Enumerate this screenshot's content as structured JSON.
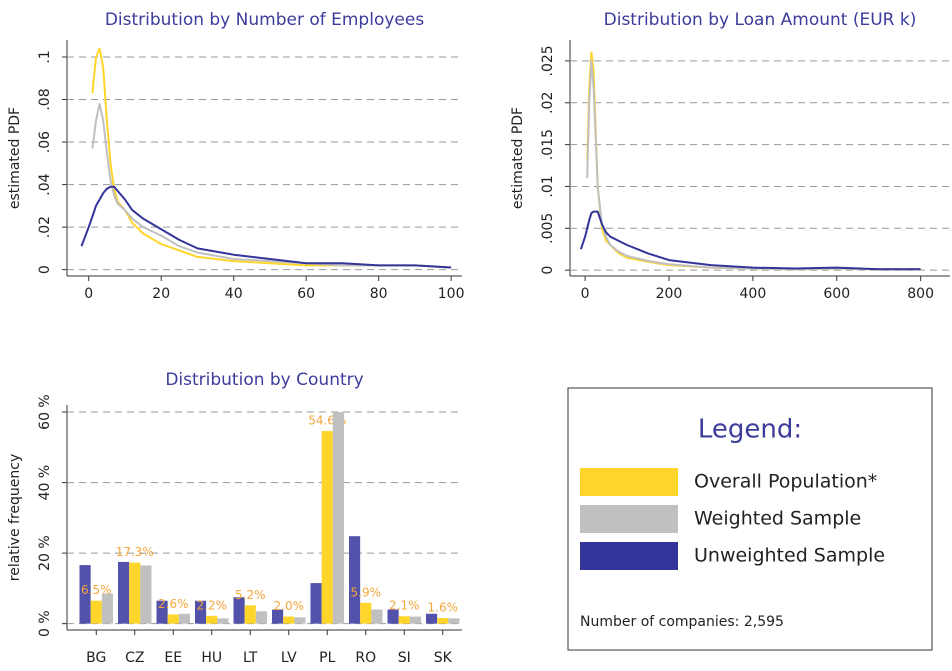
{
  "chart_data": [
    {
      "type": "line",
      "title": "Distribution by Number of Employees",
      "y_label": "estimated PDF",
      "x": [
        -2,
        0,
        1,
        2,
        3,
        4,
        5,
        6,
        7,
        8,
        10,
        12,
        15,
        20,
        25,
        30,
        40,
        50,
        60,
        70,
        80,
        90,
        100
      ],
      "series": [
        {
          "name": "Overall Population*",
          "color": "#fdd52b",
          "values": [
            null,
            null,
            0.083,
            0.1,
            0.104,
            0.095,
            0.07,
            0.05,
            0.038,
            0.032,
            0.028,
            0.022,
            0.017,
            0.012,
            0.009,
            0.006,
            0.004,
            0.003,
            0.002,
            0.002,
            0.002,
            0.002,
            0.001
          ]
        },
        {
          "name": "Weighted Sample",
          "color": "#c0c0c0",
          "values": [
            null,
            null,
            0.057,
            0.07,
            0.078,
            0.07,
            0.055,
            0.042,
            0.035,
            0.031,
            0.028,
            0.024,
            0.02,
            0.016,
            0.011,
            0.008,
            0.005,
            0.004,
            0.003,
            0.002,
            0.002,
            0.002,
            0.001
          ]
        },
        {
          "name": "Unweighted Sample",
          "color": "#34349a",
          "values": [
            0.011,
            0.02,
            0.025,
            0.03,
            0.033,
            0.036,
            0.038,
            0.039,
            0.039,
            0.037,
            0.033,
            0.028,
            0.024,
            0.019,
            0.014,
            0.01,
            0.007,
            0.005,
            0.003,
            0.003,
            0.002,
            0.002,
            0.001
          ]
        }
      ],
      "xlim": [
        -6,
        103
      ],
      "xticks": [
        0,
        20,
        40,
        60,
        80,
        100
      ],
      "ylim": [
        -0.003,
        0.108
      ],
      "yticks": [
        0,
        {
          "value": 0.02,
          "label": ".02"
        },
        {
          "value": 0.04,
          "label": ".04"
        },
        {
          "value": 0.06,
          "label": ".06"
        },
        {
          "value": 0.08,
          "label": ".08"
        },
        {
          "value": 0.1,
          "label": ".1"
        }
      ],
      "grid": true
    },
    {
      "type": "line",
      "title": "Distribution by Loan Amount (EUR k)",
      "y_label": "estimated PDF",
      "x": [
        -10,
        0,
        5,
        10,
        15,
        20,
        25,
        30,
        40,
        50,
        60,
        80,
        100,
        150,
        200,
        300,
        400,
        500,
        600,
        700,
        800
      ],
      "series": [
        {
          "name": "Overall Population*",
          "color": "#fdd52b",
          "values": [
            null,
            null,
            0.013,
            0.022,
            0.026,
            0.024,
            0.017,
            0.01,
            0.005,
            0.0035,
            0.003,
            0.002,
            0.0015,
            0.001,
            0.0006,
            0.0003,
            0.0002,
            0.0001,
            0.0002,
            0.0001,
            0.0001
          ]
        },
        {
          "name": "Weighted Sample",
          "color": "#c0c0c0",
          "values": [
            null,
            null,
            0.011,
            0.02,
            0.025,
            0.022,
            0.016,
            0.01,
            0.0055,
            0.004,
            0.003,
            0.0022,
            0.0017,
            0.0011,
            0.0007,
            0.0003,
            0.0002,
            0.0001,
            0.0002,
            0.0001,
            0.0001
          ]
        },
        {
          "name": "Unweighted Sample",
          "color": "#34349a",
          "values": [
            0.0025,
            0.004,
            0.005,
            0.006,
            0.0068,
            0.007,
            0.007,
            0.007,
            0.0055,
            0.0045,
            0.004,
            0.0035,
            0.003,
            0.002,
            0.0012,
            0.0006,
            0.0003,
            0.0002,
            0.0003,
            0.0001,
            0.0001
          ]
        }
      ],
      "xlim": [
        -36,
        870
      ],
      "xticks": [
        0,
        200,
        400,
        600,
        800
      ],
      "ylim": [
        -0.0007,
        0.0275
      ],
      "yticks": [
        0,
        {
          "value": 0.005,
          "label": ".005"
        },
        {
          "value": 0.01,
          "label": ".01"
        },
        {
          "value": 0.015,
          "label": ".015"
        },
        {
          "value": 0.02,
          "label": ".02"
        },
        {
          "value": 0.025,
          "label": ".025"
        }
      ],
      "grid": true
    },
    {
      "type": "bar",
      "title": "Distribution by Country",
      "y_label": "relative frequency",
      "categories": [
        "BG",
        "CZ",
        "EE",
        "HU",
        "LT",
        "LV",
        "PL",
        "RO",
        "SI",
        "SK"
      ],
      "series": [
        {
          "name": "Unweighted Sample",
          "color": "#5252aa",
          "values": [
            16.6,
            17.5,
            6.5,
            6.5,
            7.5,
            4,
            11.5,
            24.8,
            4,
            2.8
          ]
        },
        {
          "name": "Overall Population*",
          "color": "#fdd52b",
          "values": [
            6.5,
            17.3,
            2.6,
            2.2,
            5.2,
            2.0,
            54.6,
            5.9,
            2.1,
            1.6
          ],
          "value_labels": [
            "6.5%",
            "17.3%",
            "2.6%",
            "2.2%",
            "5.2%",
            "2.0%",
            "54.6%",
            "5.9%",
            "2.1%",
            "1.6%"
          ],
          "label_color": "#f4a63a"
        },
        {
          "name": "Weighted Sample",
          "color": "#c0c0c0",
          "values": [
            8.5,
            16.5,
            2.8,
            1.5,
            3.5,
            1.8,
            60,
            4,
            2,
            1.5
          ]
        }
      ],
      "ylim": [
        -1.8,
        62
      ],
      "yticks": [
        {
          "value": 0,
          "label": "0 %"
        },
        {
          "value": 20,
          "label": "20 %"
        },
        {
          "value": 40,
          "label": "40 %"
        },
        {
          "value": 60,
          "label": "60 %"
        }
      ],
      "grid": true
    }
  ],
  "legend": {
    "title": "Legend:",
    "note": "Number of companies: 2,595"
  }
}
